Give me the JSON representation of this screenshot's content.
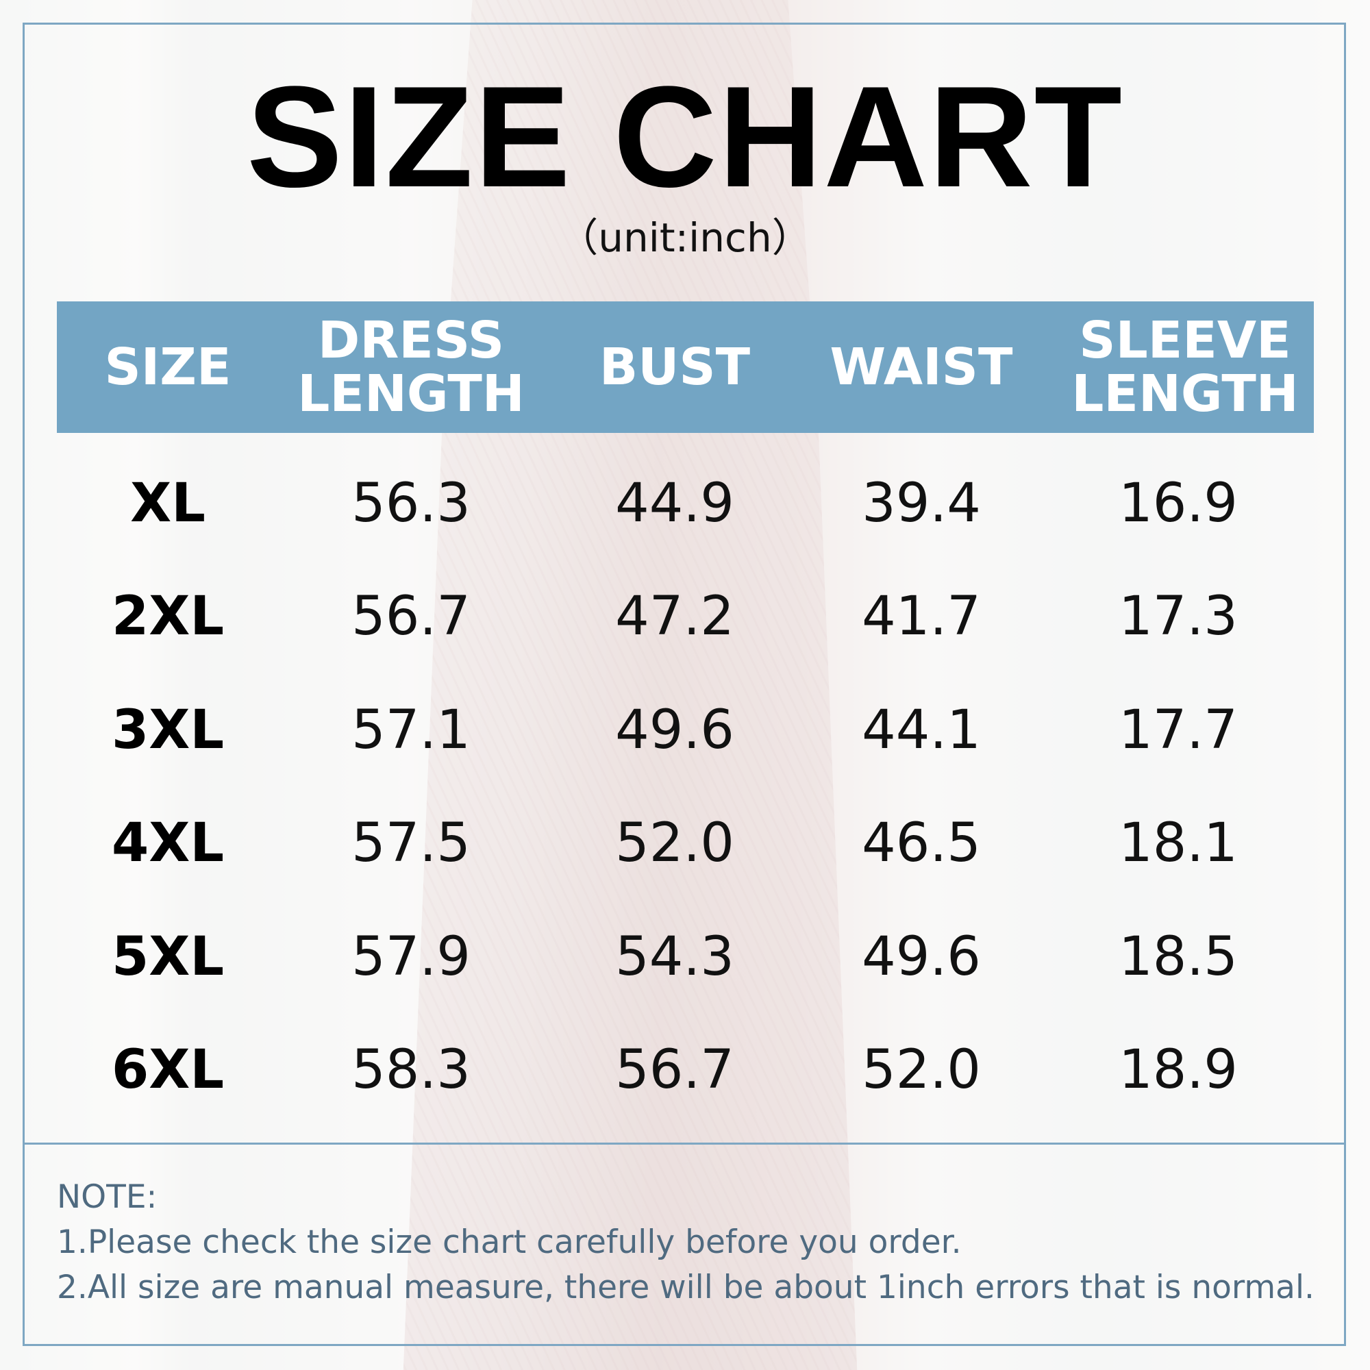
{
  "title": "SIZE CHART",
  "unit": "（unit:inch）",
  "colors": {
    "header_bg": "#73a5c4",
    "frame": "#7ea7c3",
    "note_text": "#4f6a80"
  },
  "table": {
    "headers": [
      "SIZE",
      "DRESS\nLENGTH",
      "BUST",
      "WAIST",
      "SLEEVE\nLENGTH"
    ],
    "rows": [
      [
        "XL",
        "56.3",
        "44.9",
        "39.4",
        "16.9"
      ],
      [
        "2XL",
        "56.7",
        "47.2",
        "41.7",
        "17.3"
      ],
      [
        "3XL",
        "57.1",
        "49.6",
        "44.1",
        "17.7"
      ],
      [
        "4XL",
        "57.5",
        "52.0",
        "46.5",
        "18.1"
      ],
      [
        "5XL",
        "57.9",
        "54.3",
        "49.6",
        "18.5"
      ],
      [
        "6XL",
        "58.3",
        "56.7",
        "52.0",
        "18.9"
      ]
    ]
  },
  "notes": {
    "heading": "NOTE:",
    "lines": [
      "1.Please check the size chart carefully before you order.",
      "2.All size are manual measure, there will be about 1inch errors that is normal."
    ]
  }
}
